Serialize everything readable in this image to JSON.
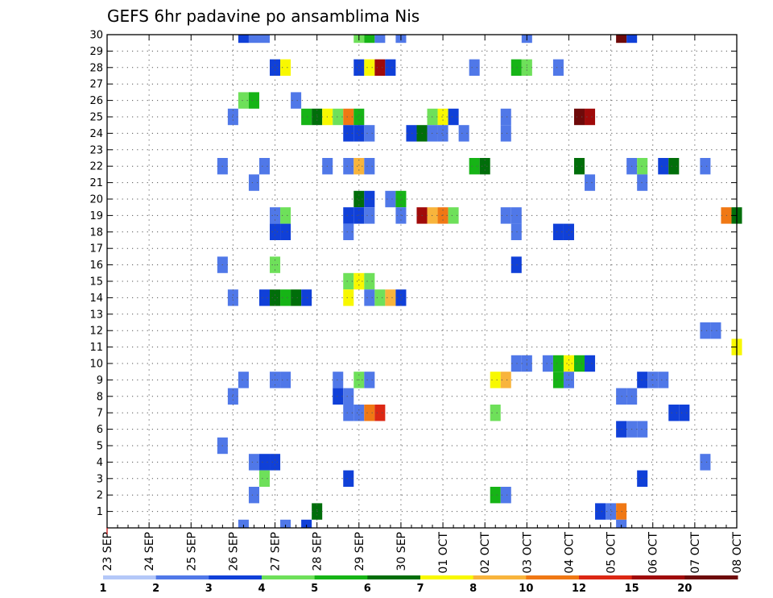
{
  "chart_data": {
    "type": "heatmap",
    "title": "GEFS 6hr padavine po ansamblima Nis",
    "xlabel": "",
    "ylabel": "",
    "x_range_days": [
      0,
      15
    ],
    "y_range": [
      0,
      30
    ],
    "grid": "dotted",
    "x_tick_labels": [
      "23 SEP",
      "24 SEP",
      "25 SEP",
      "26 SEP",
      "27 SEP",
      "28 SEP",
      "29 SEP",
      "30 SEP",
      "01 OCT",
      "02 OCT",
      "03 OCT",
      "04 OCT",
      "05 OCT",
      "06 OCT",
      "07 OCT",
      "08 OCT"
    ],
    "y_tick_labels": [
      "1",
      "2",
      "3",
      "4",
      "5",
      "6",
      "7",
      "8",
      "9",
      "10",
      "11",
      "12",
      "13",
      "14",
      "15",
      "16",
      "17",
      "18",
      "19",
      "20",
      "21",
      "22",
      "23",
      "24",
      "25",
      "26",
      "27",
      "28",
      "29",
      "30"
    ],
    "legend": {
      "placement": "bottom",
      "colors": [
        "#b4c8f8",
        "#5078e8",
        "#1040d8",
        "#6ee05a",
        "#16b416",
        "#006e0a",
        "#f8f800",
        "#f8b43c",
        "#f07814",
        "#dc2814",
        "#a00a0a",
        "#6e0a0a"
      ],
      "labels": [
        "1",
        "2",
        "3",
        "4",
        "5",
        "6",
        "7",
        "8",
        "10",
        "12",
        "15",
        "20"
      ]
    },
    "cells": [
      [
        3.25,
        30,
        2
      ],
      [
        3.5,
        30,
        1
      ],
      [
        3.75,
        30,
        1
      ],
      [
        6,
        30,
        3
      ],
      [
        6.25,
        30,
        4
      ],
      [
        6.5,
        30,
        1
      ],
      [
        7,
        30,
        1
      ],
      [
        10,
        30,
        1
      ],
      [
        12.25,
        30,
        11
      ],
      [
        12.5,
        30,
        2
      ],
      [
        4,
        28,
        2
      ],
      [
        4.25,
        28,
        6
      ],
      [
        6,
        28,
        2
      ],
      [
        6.25,
        28,
        6
      ],
      [
        6.5,
        28,
        10
      ],
      [
        6.75,
        28,
        2
      ],
      [
        8.75,
        28,
        1
      ],
      [
        9.75,
        28,
        4
      ],
      [
        10,
        28,
        3
      ],
      [
        10.75,
        28,
        1
      ],
      [
        3.25,
        26,
        3
      ],
      [
        3.5,
        26,
        4
      ],
      [
        4.5,
        26,
        1
      ],
      [
        3,
        25,
        1
      ],
      [
        4.75,
        25,
        4
      ],
      [
        5,
        25,
        5
      ],
      [
        5.25,
        25,
        6
      ],
      [
        5.5,
        25,
        3
      ],
      [
        5.75,
        25,
        8
      ],
      [
        6,
        25,
        4
      ],
      [
        7.75,
        25,
        3
      ],
      [
        8,
        25,
        6
      ],
      [
        8.25,
        25,
        2
      ],
      [
        9.5,
        25,
        1
      ],
      [
        11.25,
        25,
        11
      ],
      [
        11.5,
        25,
        10
      ],
      [
        5.75,
        24,
        2
      ],
      [
        6,
        24,
        2
      ],
      [
        6.25,
        24,
        1
      ],
      [
        7.25,
        24,
        2
      ],
      [
        7.5,
        24,
        5
      ],
      [
        7.75,
        24,
        1
      ],
      [
        8,
        24,
        1
      ],
      [
        8.5,
        24,
        1
      ],
      [
        9.5,
        24,
        1
      ],
      [
        2.75,
        22,
        1
      ],
      [
        3.75,
        22,
        1
      ],
      [
        5.25,
        22,
        1
      ],
      [
        5.75,
        22,
        1
      ],
      [
        6,
        22,
        7
      ],
      [
        6.25,
        22,
        1
      ],
      [
        8.75,
        22,
        4
      ],
      [
        9,
        22,
        5
      ],
      [
        11.25,
        22,
        5
      ],
      [
        12.5,
        22,
        1
      ],
      [
        12.75,
        22,
        3
      ],
      [
        13.25,
        22,
        2
      ],
      [
        13.5,
        22,
        5
      ],
      [
        14.25,
        22,
        1
      ],
      [
        3.5,
        21,
        1
      ],
      [
        11.5,
        21,
        1
      ],
      [
        12.75,
        21,
        1
      ],
      [
        6,
        20,
        5
      ],
      [
        6.25,
        20,
        2
      ],
      [
        6.75,
        20,
        1
      ],
      [
        7,
        20,
        4
      ],
      [
        4,
        19,
        1
      ],
      [
        4.25,
        19,
        3
      ],
      [
        5.75,
        19,
        2
      ],
      [
        6,
        19,
        2
      ],
      [
        6.25,
        19,
        1
      ],
      [
        7,
        19,
        1
      ],
      [
        7.5,
        19,
        10
      ],
      [
        7.75,
        19,
        7
      ],
      [
        8,
        19,
        8
      ],
      [
        8.25,
        19,
        3
      ],
      [
        9.5,
        19,
        1
      ],
      [
        9.75,
        19,
        1
      ],
      [
        14.75,
        19,
        8
      ],
      [
        15,
        19,
        5
      ],
      [
        4,
        18,
        2
      ],
      [
        4.25,
        18,
        2
      ],
      [
        5.75,
        18,
        1
      ],
      [
        9.75,
        18,
        1
      ],
      [
        10.75,
        18,
        2
      ],
      [
        11,
        18,
        2
      ],
      [
        2.75,
        16,
        1
      ],
      [
        4,
        16,
        3
      ],
      [
        9.75,
        16,
        2
      ],
      [
        5.75,
        15,
        3
      ],
      [
        6,
        15,
        6
      ],
      [
        6.25,
        15,
        3
      ],
      [
        3,
        14,
        1
      ],
      [
        3.75,
        14,
        2
      ],
      [
        4,
        14,
        5
      ],
      [
        4.25,
        14,
        4
      ],
      [
        4.5,
        14,
        5
      ],
      [
        4.75,
        14,
        2
      ],
      [
        5.75,
        14,
        6
      ],
      [
        6.25,
        14,
        1
      ],
      [
        6.5,
        14,
        3
      ],
      [
        6.75,
        14,
        7
      ],
      [
        7,
        14,
        2
      ],
      [
        14.25,
        12,
        1
      ],
      [
        14.5,
        12,
        1
      ],
      [
        15,
        11,
        6
      ],
      [
        9.75,
        10,
        1
      ],
      [
        10,
        10,
        1
      ],
      [
        10.5,
        10,
        1
      ],
      [
        10.75,
        10,
        4
      ],
      [
        11,
        10,
        6
      ],
      [
        11.25,
        10,
        4
      ],
      [
        11.5,
        10,
        2
      ],
      [
        3.25,
        9,
        1
      ],
      [
        4,
        9,
        1
      ],
      [
        4.25,
        9,
        1
      ],
      [
        5.5,
        9,
        1
      ],
      [
        6,
        9,
        3
      ],
      [
        6.25,
        9,
        1
      ],
      [
        9.25,
        9,
        6
      ],
      [
        9.5,
        9,
        7
      ],
      [
        10.75,
        9,
        4
      ],
      [
        11,
        9,
        1
      ],
      [
        12.75,
        9,
        2
      ],
      [
        13,
        9,
        1
      ],
      [
        13.25,
        9,
        1
      ],
      [
        3,
        8,
        1
      ],
      [
        5.5,
        8,
        2
      ],
      [
        5.75,
        8,
        1
      ],
      [
        12.25,
        8,
        1
      ],
      [
        12.5,
        8,
        1
      ],
      [
        5.75,
        7,
        1
      ],
      [
        6,
        7,
        1
      ],
      [
        6.25,
        7,
        8
      ],
      [
        6.5,
        7,
        9
      ],
      [
        9.25,
        7,
        3
      ],
      [
        13.5,
        7,
        2
      ],
      [
        13.75,
        7,
        2
      ],
      [
        12.25,
        6,
        2
      ],
      [
        12.5,
        6,
        1
      ],
      [
        12.75,
        6,
        1
      ],
      [
        2.75,
        5,
        1
      ],
      [
        3.5,
        4,
        1
      ],
      [
        3.75,
        4,
        2
      ],
      [
        4,
        4,
        2
      ],
      [
        14.25,
        4,
        1
      ],
      [
        3.75,
        3,
        3
      ],
      [
        5.75,
        3,
        2
      ],
      [
        12.75,
        3,
        2
      ],
      [
        3.5,
        2,
        1
      ],
      [
        9.25,
        2,
        4
      ],
      [
        9.5,
        2,
        1
      ],
      [
        5,
        1,
        5
      ],
      [
        11.75,
        1,
        2
      ],
      [
        12,
        1,
        1
      ],
      [
        12.25,
        1,
        8
      ],
      [
        12.25,
        0,
        1
      ],
      [
        3.25,
        0,
        1
      ],
      [
        4.25,
        0,
        1
      ],
      [
        4.75,
        0,
        2
      ]
    ]
  }
}
